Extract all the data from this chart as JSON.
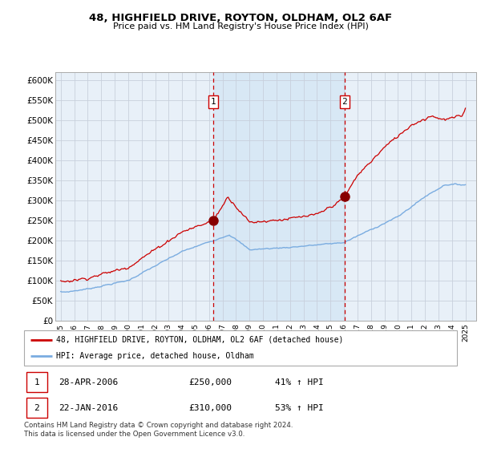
{
  "title1": "48, HIGHFIELD DRIVE, ROYTON, OLDHAM, OL2 6AF",
  "title2": "Price paid vs. HM Land Registry's House Price Index (HPI)",
  "ylabel_ticks": [
    "£0",
    "£50K",
    "£100K",
    "£150K",
    "£200K",
    "£250K",
    "£300K",
    "£350K",
    "£400K",
    "£450K",
    "£500K",
    "£550K",
    "£600K"
  ],
  "ytick_values": [
    0,
    50000,
    100000,
    150000,
    200000,
    250000,
    300000,
    350000,
    400000,
    450000,
    500000,
    550000,
    600000
  ],
  "ylim": [
    0,
    620000
  ],
  "xlim_start": 1994.6,
  "xlim_end": 2025.8,
  "sale1_x": 2006.32,
  "sale1_y": 250000,
  "sale1_label": "1",
  "sale2_x": 2016.05,
  "sale2_y": 310000,
  "sale2_label": "2",
  "legend_line1": "48, HIGHFIELD DRIVE, ROYTON, OLDHAM, OL2 6AF (detached house)",
  "legend_line2": "HPI: Average price, detached house, Oldham",
  "table_row1": [
    "1",
    "28-APR-2006",
    "£250,000",
    "41% ↑ HPI"
  ],
  "table_row2": [
    "2",
    "22-JAN-2016",
    "£310,000",
    "53% ↑ HPI"
  ],
  "footer": "Contains HM Land Registry data © Crown copyright and database right 2024.\nThis data is licensed under the Open Government Licence v3.0.",
  "red_color": "#cc0000",
  "blue_color": "#7aace0",
  "shade_color": "#d8e8f5",
  "bg_color": "#e8f0f8",
  "border_color": "#aaaaaa",
  "sale_marker_color": "#880000",
  "vline_color": "#cc0000",
  "grid_color": "#c8d0dc",
  "x_ticks": [
    1995,
    1996,
    1997,
    1998,
    1999,
    2000,
    2001,
    2002,
    2003,
    2004,
    2005,
    2006,
    2007,
    2008,
    2009,
    2010,
    2011,
    2012,
    2013,
    2014,
    2015,
    2016,
    2017,
    2018,
    2019,
    2020,
    2021,
    2022,
    2023,
    2024,
    2025
  ],
  "fig_width": 6.0,
  "fig_height": 5.6,
  "dpi": 100
}
